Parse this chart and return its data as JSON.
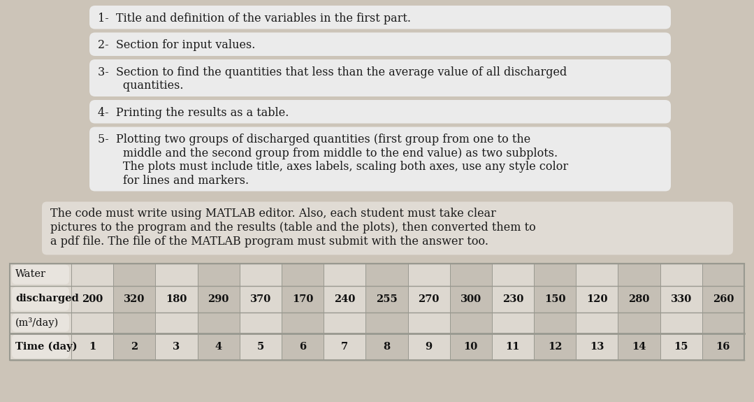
{
  "background_color": "#ccc4b8",
  "bullet_box_color": "#ebebeb",
  "para_box_color": "#e0dbd4",
  "bullet_lines": [
    [
      "1-  Title and definition of the variables in the first part."
    ],
    [
      "2-  Section for input values."
    ],
    [
      "3-  Section to find the quantities that less than the average value of all discharged",
      "       quantities."
    ],
    [
      "4-  Printing the results as a table."
    ],
    [
      "5-  Plotting two groups of discharged quantities (first group from one to the",
      "       middle and the second group from middle to the end value) as two subplots.",
      "       The plots must include title, axes labels, scaling both axes, use any style color",
      "       for lines and markers."
    ]
  ],
  "paragraph_lines": [
    "The code must write using MATLAB editor. Also, each student must take clear",
    "pictures to the program and the results (table and the plots), then converted them to",
    "a pdf file. The file of the MATLAB program must submit with the answer too."
  ],
  "table_row1": [
    "Water",
    "",
    "",
    "",
    "",
    "",
    "",
    "",
    "",
    "",
    "",
    "",
    "",
    "",
    "",
    "",
    ""
  ],
  "table_row2": [
    "discharged",
    "200",
    "320",
    "180",
    "290",
    "370",
    "170",
    "240",
    "255",
    "270",
    "300",
    "230",
    "150",
    "120",
    "280",
    "330",
    "260"
  ],
  "table_row3": [
    "(m³/day)",
    "",
    "",
    "",
    "",
    "",
    "",
    "",
    "",
    "",
    "",
    "",
    "",
    "",
    "",
    "",
    ""
  ],
  "table_row4": [
    "Time (day)",
    "1",
    "2",
    "3",
    "4",
    "5",
    "6",
    "7",
    "8",
    "9",
    "10",
    "11",
    "12",
    "13",
    "14",
    "15",
    "16"
  ],
  "table_cell_light": "#ddd8d0",
  "table_cell_dark": "#c5bfb5",
  "table_border": "#999990",
  "font_family": "serif",
  "font_size_bullet": 11.5,
  "font_size_table": 10.5
}
